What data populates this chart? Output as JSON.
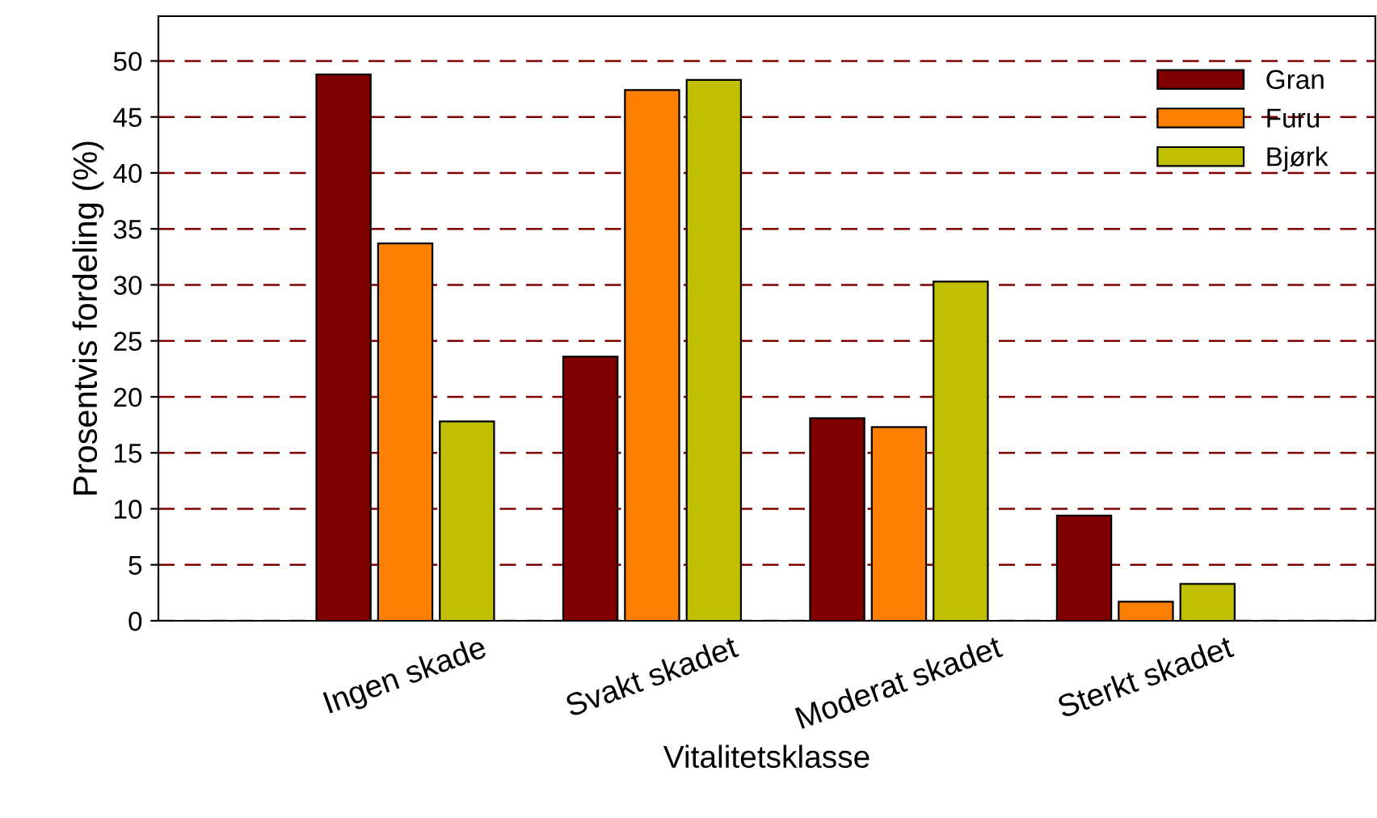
{
  "chart_data": {
    "type": "bar",
    "xlabel": "Vitalitetsklasse",
    "ylabel": "Prosentvis fordeling (%)",
    "categories": [
      "Ingen skade",
      "Svakt skadet",
      "Moderat skadet",
      "Sterkt skadet"
    ],
    "series": [
      {
        "name": "Gran",
        "color": "#800000",
        "values": [
          48.8,
          23.6,
          18.1,
          9.4
        ]
      },
      {
        "name": "Furu",
        "color": "#ff8000",
        "values": [
          33.7,
          47.4,
          17.3,
          1.7
        ]
      },
      {
        "name": "Bjørk",
        "color": "#c0c000",
        "values": [
          17.8,
          48.3,
          30.3,
          3.3
        ]
      }
    ],
    "ylim": [
      0,
      54
    ],
    "yticks": [
      0,
      5,
      10,
      15,
      20,
      25,
      30,
      35,
      40,
      45,
      50
    ],
    "grid": "y",
    "legend": "top right"
  }
}
